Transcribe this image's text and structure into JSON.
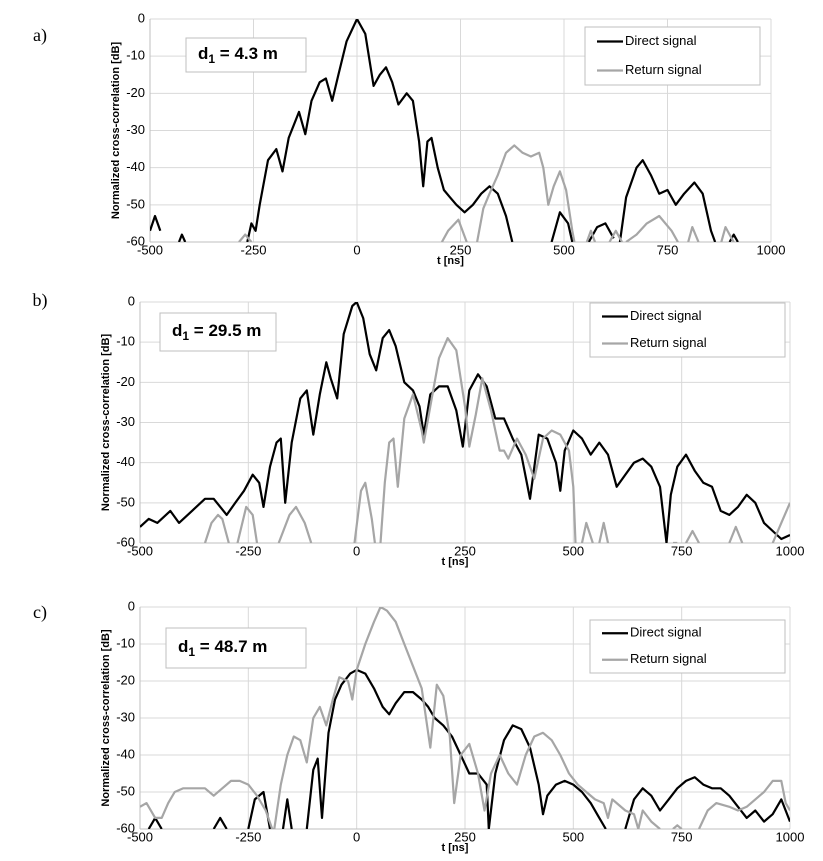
{
  "chart_data": [
    {
      "type": "line",
      "panel": "a)",
      "annotation": {
        "symbol": "d",
        "subscript": "1",
        "text": " = 4.3 m"
      },
      "xlabel": "t [ns]",
      "ylabel": "Normalized cross-correlation [dB]",
      "xlim": [
        -500,
        1000
      ],
      "xticks": [
        -500,
        -250,
        0,
        250,
        500,
        750,
        1000
      ],
      "ylim": [
        -60,
        0
      ],
      "yticks": [
        0,
        -10,
        -20,
        -30,
        -40,
        -50,
        -60
      ],
      "grid": true,
      "legend": "top-right",
      "series": [
        {
          "name": "Direct signal",
          "color": "#000000",
          "x": [
            -500,
            -488,
            -475,
            -465,
            -430,
            -423,
            -415,
            -410,
            -265,
            -255,
            -245,
            -235,
            -215,
            -195,
            -180,
            -165,
            -140,
            -125,
            -110,
            -90,
            -75,
            -60,
            -45,
            -25,
            0,
            20,
            40,
            55,
            70,
            85,
            100,
            120,
            135,
            150,
            160,
            170,
            180,
            195,
            210,
            225,
            240,
            260,
            280,
            300,
            320,
            340,
            360,
            375,
            380,
            470,
            490,
            510,
            520,
            525,
            560,
            580,
            600,
            620,
            630,
            635,
            650,
            675,
            690,
            710,
            730,
            750,
            770,
            790,
            815,
            835,
            855,
            865,
            870,
            900,
            910,
            920
          ],
          "values": [
            -57,
            -53,
            -57,
            null,
            -60,
            -58,
            -60,
            null,
            -60,
            -55,
            -57,
            -50,
            -38,
            -35,
            -41,
            -32,
            -25,
            -31,
            -22,
            -17,
            -16,
            -22,
            -15,
            -6,
            0,
            -4,
            -18,
            -15,
            -13,
            -17,
            -23,
            -20,
            -22,
            -33,
            -45,
            -33,
            -32,
            -40,
            -46,
            -48,
            -50,
            -52,
            -50,
            -47,
            -45,
            -47,
            -53,
            -60,
            null,
            -60,
            -52,
            -55,
            -60,
            null,
            -60,
            -56,
            -55,
            -59,
            null,
            -60,
            -48,
            -40,
            -38,
            -42,
            -47,
            -46,
            -50,
            -47,
            -44,
            -47,
            -57,
            -60,
            null,
            -60,
            -58,
            -60
          ]
        },
        {
          "name": "Return signal",
          "color": "#a6a6a6",
          "x": [
            -285,
            -270,
            -255,
            -250,
            205,
            220,
            245,
            265,
            270,
            290,
            305,
            320,
            340,
            360,
            380,
            400,
            420,
            440,
            450,
            462,
            475,
            490,
            505,
            520,
            525,
            530,
            555,
            565,
            575,
            580,
            610,
            625,
            640,
            645,
            650,
            675,
            700,
            730,
            760,
            775,
            780,
            800,
            810,
            825,
            830,
            880,
            890,
            900,
            910
          ],
          "values": [
            -60,
            -58,
            -60,
            null,
            -60,
            -57,
            -54,
            -60,
            null,
            -60,
            -51,
            -47,
            -42,
            -36,
            -34,
            -36,
            -37,
            -36,
            -40,
            -50,
            -45,
            -41,
            -46,
            -57,
            -60,
            null,
            -60,
            -57,
            -60,
            null,
            -60,
            -57,
            -60,
            null,
            -60,
            -58,
            -55,
            -53,
            -57,
            -60,
            null,
            -60,
            -56,
            -60,
            null,
            -60,
            -56,
            -58,
            -60
          ]
        }
      ]
    },
    {
      "type": "line",
      "panel": "b)",
      "annotation": {
        "symbol": "d",
        "subscript": "1",
        "text": " = 29.5 m"
      },
      "xlabel": "t [ns]",
      "ylabel": "Normalized cross-correlation [dB]",
      "xlim": [
        -500,
        1000
      ],
      "xticks": [
        -500,
        -250,
        0,
        250,
        500,
        750,
        1000
      ],
      "ylim": [
        -60,
        0
      ],
      "yticks": [
        0,
        -10,
        -20,
        -30,
        -40,
        -50,
        -60
      ],
      "grid": true,
      "legend": "top-right",
      "series": [
        {
          "name": "Direct signal",
          "color": "#000000",
          "x": [
            -500,
            -480,
            -460,
            -430,
            -410,
            -380,
            -350,
            -330,
            -300,
            -280,
            -260,
            -240,
            -225,
            -215,
            -200,
            -185,
            -175,
            -165,
            -150,
            -130,
            -115,
            -100,
            -85,
            -70,
            -60,
            -45,
            -30,
            -10,
            0,
            15,
            30,
            45,
            60,
            75,
            90,
            110,
            130,
            145,
            155,
            170,
            190,
            210,
            230,
            245,
            260,
            280,
            300,
            320,
            340,
            360,
            380,
            400,
            420,
            440,
            460,
            470,
            480,
            500,
            520,
            540,
            560,
            580,
            600,
            620,
            640,
            660,
            680,
            700,
            715,
            725,
            740,
            760,
            780,
            800,
            820,
            840,
            860,
            880,
            900,
            920,
            940,
            960,
            980,
            1000
          ],
          "values": [
            -56,
            -54,
            -55,
            -52,
            -55,
            -52,
            -49,
            -49,
            -53,
            -50,
            -47,
            -43,
            -45,
            -51,
            -41,
            -35,
            -34,
            -50,
            -35,
            -24,
            -22,
            -33,
            -23,
            -15,
            -19,
            -24,
            -8,
            -1,
            0,
            -4,
            -13,
            -17,
            -9,
            -7,
            -11,
            -20,
            -22,
            -26,
            -33,
            -23,
            -21,
            -21,
            -27,
            -36,
            -22,
            -18,
            -21,
            -29,
            -29,
            -34,
            -38,
            -49,
            -33,
            -34,
            -40,
            -47,
            -37,
            -32,
            -34,
            -38,
            -35,
            -38,
            -46,
            -43,
            -40,
            -39,
            -41,
            -46,
            -60,
            -48,
            -41,
            -38,
            -42,
            -45,
            -46,
            -52,
            -53,
            -51,
            -48,
            -50,
            -55,
            -57,
            -59,
            -58
          ]
        },
        {
          "name": "Return signal",
          "color": "#a6a6a6",
          "x": [
            -350,
            -335,
            -320,
            -310,
            -295,
            -290,
            -275,
            -255,
            -240,
            -230,
            -225,
            -180,
            -155,
            -140,
            -120,
            -105,
            -100,
            -5,
            10,
            20,
            35,
            42,
            45,
            55,
            65,
            75,
            85,
            95,
            110,
            130,
            150,
            155,
            170,
            190,
            210,
            230,
            250,
            260,
            275,
            290,
            310,
            330,
            340,
            350,
            370,
            390,
            410,
            430,
            450,
            470,
            490,
            500,
            505,
            510,
            520,
            530,
            545,
            550,
            560,
            570,
            580,
            585,
            730,
            740,
            745,
            760,
            775,
            790,
            795,
            860,
            875,
            890,
            895,
            960,
            980,
            1000
          ],
          "values": [
            -60,
            -55,
            -53,
            -54,
            -60,
            null,
            -60,
            -51,
            -53,
            -60,
            null,
            -60,
            -53,
            -51,
            -55,
            -60,
            null,
            -60,
            -47,
            -45,
            -54,
            -60,
            null,
            -60,
            -45,
            -35,
            -34,
            -46,
            -29,
            -23,
            -32,
            -35,
            -26,
            -14,
            -9,
            -12,
            -26,
            -36,
            -28,
            -19,
            -27,
            -37,
            -37,
            -39,
            -34,
            -38,
            -44,
            -34,
            -32,
            -33,
            -37,
            -46,
            -60,
            null,
            -60,
            -55,
            -60,
            null,
            -60,
            -55,
            -60,
            null,
            -60,
            -60,
            null,
            -60,
            -57,
            -60,
            null,
            -60,
            -56,
            -60,
            null,
            -60,
            -55,
            -50
          ]
        }
      ]
    },
    {
      "type": "line",
      "panel": "c)",
      "annotation": {
        "symbol": "d",
        "subscript": "1",
        "text": " = 48.7 m"
      },
      "xlabel": "t [ns]",
      "ylabel": "Normalized cross-correlation [dB]",
      "xlim": [
        -500,
        1000
      ],
      "xticks": [
        -500,
        -250,
        0,
        250,
        500,
        750,
        1000
      ],
      "ylim": [
        -60,
        0
      ],
      "yticks": [
        0,
        -10,
        -20,
        -30,
        -40,
        -50,
        -60
      ],
      "grid": true,
      "legend": "top-right",
      "series": [
        {
          "name": "Direct signal",
          "color": "#000000",
          "x": [
            -480,
            -465,
            -450,
            -445,
            -330,
            -315,
            -300,
            -295,
            -250,
            -235,
            -215,
            -200,
            -190,
            -170,
            -160,
            -150,
            -145,
            -115,
            -100,
            -90,
            -80,
            -65,
            -50,
            -35,
            -15,
            0,
            20,
            40,
            60,
            75,
            90,
            110,
            130,
            150,
            165,
            180,
            200,
            220,
            240,
            260,
            280,
            300,
            305,
            320,
            340,
            360,
            380,
            400,
            420,
            430,
            440,
            460,
            480,
            500,
            520,
            540,
            560,
            575,
            580,
            620,
            640,
            660,
            680,
            700,
            720,
            740,
            760,
            780,
            800,
            820,
            840,
            860,
            880,
            900,
            920,
            940,
            960,
            980,
            1000
          ],
          "values": [
            -60,
            -57,
            -60,
            null,
            -60,
            -57,
            -60,
            null,
            -60,
            -52,
            -50,
            -60,
            null,
            -60,
            -52,
            -60,
            null,
            -60,
            -44,
            -41,
            -57,
            -34,
            -25,
            -21,
            -18,
            -17,
            -18,
            -22,
            -27,
            -29,
            -26,
            -23,
            -23,
            -25,
            -27,
            -30,
            -32,
            -35,
            -40,
            -45,
            -45,
            -48,
            -60,
            -45,
            -36,
            -32,
            -33,
            -38,
            -48,
            -56,
            -51,
            -48,
            -47,
            -48,
            -50,
            -53,
            -57,
            -60,
            null,
            -60,
            -52,
            -49,
            -51,
            -55,
            -52,
            -49,
            -47,
            -46,
            -48,
            -49,
            -49,
            -51,
            -54,
            -57,
            -55,
            -58,
            -56,
            -52,
            -58
          ]
        },
        {
          "name": "Return signal",
          "color": "#a6a6a6",
          "x": [
            -500,
            -485,
            -465,
            -450,
            -435,
            -420,
            -400,
            -370,
            -350,
            -330,
            -310,
            -290,
            -270,
            -250,
            -230,
            -210,
            -195,
            -190,
            -175,
            -160,
            -145,
            -130,
            -115,
            -100,
            -85,
            -70,
            -55,
            -40,
            -20,
            -10,
            0,
            20,
            40,
            55,
            70,
            90,
            110,
            130,
            150,
            170,
            185,
            200,
            215,
            225,
            240,
            260,
            280,
            295,
            310,
            330,
            350,
            370,
            390,
            410,
            430,
            450,
            470,
            490,
            510,
            530,
            550,
            570,
            580,
            590,
            600,
            620,
            640,
            650,
            660,
            680,
            700,
            710,
            730,
            740,
            750,
            755,
            790,
            810,
            830,
            860,
            880,
            900,
            920,
            940,
            960,
            980,
            990,
            1000
          ],
          "values": [
            -54,
            -53,
            -57,
            -57,
            -53,
            -50,
            -49,
            -49,
            -49,
            -51,
            -49,
            -47,
            -47,
            -48,
            -51,
            -55,
            -60,
            -60,
            -48,
            -40,
            -35,
            -36,
            -42,
            -30,
            -27,
            -32,
            -25,
            -19,
            -20,
            -25,
            -17,
            -10,
            -4,
            0,
            -1,
            -4,
            -10,
            -16,
            -22,
            -38,
            -21,
            -24,
            -35,
            -53,
            -40,
            -37,
            -45,
            -55,
            -45,
            -40,
            -45,
            -48,
            -40,
            -35,
            -34,
            -36,
            -40,
            -45,
            -48,
            -50,
            -52,
            -53,
            -57,
            -52,
            -53,
            -55,
            -56,
            -60,
            -55,
            -58,
            -60,
            null,
            -60,
            -59,
            -60,
            null,
            -60,
            -55,
            -53,
            -54,
            -55,
            -54,
            -52,
            -50,
            -47,
            -47,
            -53,
            -55
          ]
        }
      ]
    }
  ]
}
